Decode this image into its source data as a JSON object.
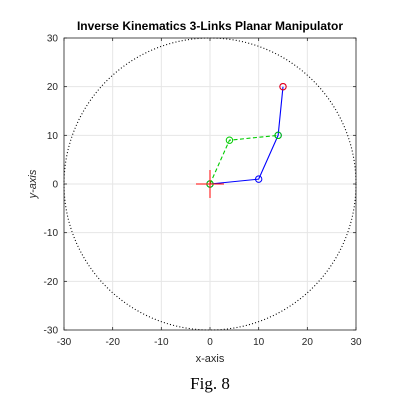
{
  "chart_data": {
    "type": "scatter",
    "title": "Inverse Kinematics 3-Links Planar Manipulator",
    "xlabel": "x-axis",
    "ylabel": "y-axis",
    "xlim": [
      -30,
      30
    ],
    "ylim": [
      -30,
      30
    ],
    "xticks": [
      -30,
      -20,
      -10,
      0,
      10,
      20,
      30
    ],
    "yticks": [
      -30,
      -20,
      -10,
      0,
      10,
      20,
      30
    ],
    "grid": true,
    "workspace_circle": {
      "center": [
        0,
        0
      ],
      "radius": 30,
      "style": "dotted",
      "color": "#000000"
    },
    "series": [
      {
        "style": "solid",
        "color": "#0000ff",
        "points": [
          [
            0,
            0
          ],
          [
            10,
            1
          ],
          [
            14,
            10
          ],
          [
            15,
            20
          ]
        ],
        "joint_markers": "circle"
      },
      {
        "style": "dashed",
        "color": "#00cc00",
        "points": [
          [
            0,
            0
          ],
          [
            4,
            9
          ],
          [
            14,
            10
          ]
        ],
        "joint_markers": "circle"
      }
    ],
    "target_point": {
      "x": 15,
      "y": 20,
      "color": "#ff0000",
      "marker": "circle"
    },
    "base_marker": {
      "x": 0,
      "y": 0,
      "color": "#ff0000",
      "marker": "plus"
    }
  },
  "caption": "Fig. 8"
}
